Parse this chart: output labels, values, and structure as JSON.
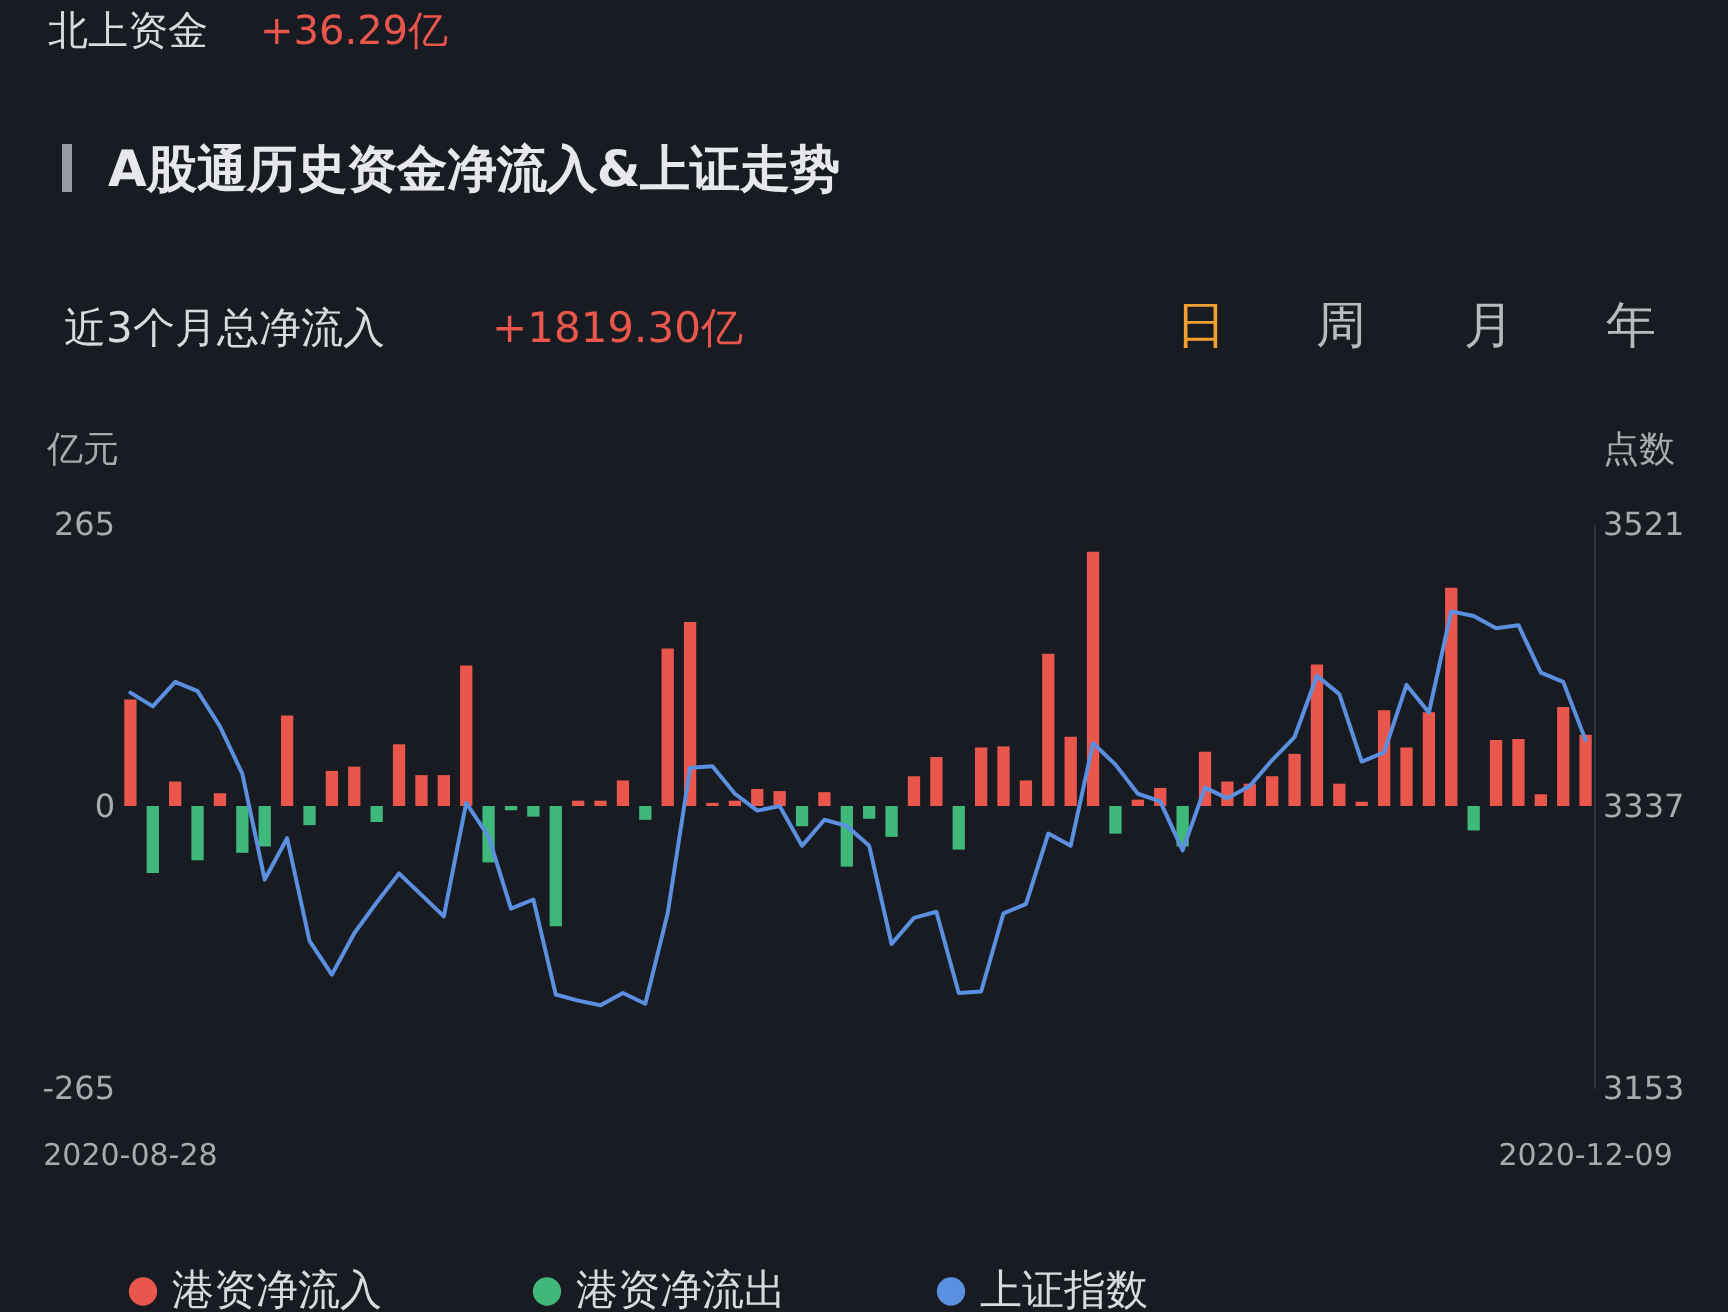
{
  "chart_data": {
    "type": "bar",
    "title": "A股通历史资金净流入&上证走势",
    "annotations": [
      "北上资金",
      "+36.29亿",
      "近3个月总净流入",
      "+1819.30亿",
      "日",
      "周",
      "月",
      "年"
    ],
    "ylabel": "亿元",
    "y2label": "点数",
    "categories": [
      "2020-08-28",
      null,
      null,
      null,
      null,
      null,
      null,
      null,
      null,
      null,
      null,
      null,
      null,
      null,
      null,
      null,
      null,
      null,
      null,
      null,
      null,
      null,
      null,
      null,
      null,
      null,
      null,
      null,
      null,
      null,
      null,
      null,
      null,
      null,
      null,
      null,
      null,
      null,
      null,
      null,
      null,
      null,
      null,
      null,
      null,
      null,
      null,
      null,
      null,
      null,
      null,
      null,
      null,
      null,
      null,
      null,
      null,
      null,
      null,
      null,
      null,
      null,
      null,
      null,
      null,
      "2020-12-09"
    ],
    "series": [
      {
        "name": "港资净流入",
        "type": "bar",
        "color": "#e8564c",
        "values": [
          100,
          null,
          23,
          null,
          12,
          null,
          null,
          85,
          null,
          33,
          37,
          null,
          58,
          29,
          29,
          132,
          null,
          null,
          null,
          null,
          5,
          5,
          24,
          null,
          148,
          173,
          3,
          5,
          16,
          14,
          null,
          13,
          null,
          null,
          null,
          28,
          46,
          null,
          55,
          56,
          24,
          143,
          65,
          239,
          null,
          6,
          17,
          null,
          51,
          23,
          21,
          28,
          49,
          133,
          21,
          4,
          90,
          55,
          88,
          205,
          null,
          62,
          63,
          11,
          93,
          67
        ]
      },
      {
        "name": "港资净流出",
        "type": "bar",
        "color": "#3fb87a",
        "values": [
          null,
          -63,
          null,
          -51,
          null,
          -44,
          -38,
          null,
          -18,
          null,
          null,
          -15,
          null,
          null,
          null,
          null,
          -53,
          -4,
          -10,
          -113,
          null,
          null,
          null,
          -13,
          null,
          null,
          null,
          null,
          null,
          null,
          -19,
          null,
          -57,
          -12,
          -29,
          null,
          null,
          -41,
          null,
          null,
          null,
          null,
          null,
          null,
          -26,
          null,
          null,
          -38,
          null,
          null,
          null,
          null,
          null,
          null,
          null,
          null,
          null,
          null,
          null,
          null,
          -23,
          null,
          null,
          null,
          null,
          null
        ]
      },
      {
        "name": "上证指数",
        "type": "line",
        "axis": "y2",
        "color": "#5b8fe0",
        "values": [
          3411,
          3402,
          3418,
          3412,
          3389,
          3358,
          3289,
          3316,
          3249,
          3227,
          3254,
          3274,
          3293,
          3279,
          3265,
          3339,
          3317,
          3270,
          3276,
          3214,
          3210,
          3207,
          3215,
          3208,
          3267,
          3362,
          3363,
          3345,
          3334,
          3337,
          3311,
          3328,
          3324,
          3311,
          3247,
          3264,
          3268,
          3215,
          3216,
          3267,
          3273,
          3319,
          3311,
          3378,
          3364,
          3345,
          3340,
          3308,
          3349,
          3342,
          3350,
          3367,
          3382,
          3422,
          3410,
          3366,
          3372,
          3416,
          3398,
          3464,
          3461,
          3453,
          3455,
          3424,
          3418,
          3380
        ]
      }
    ],
    "ylim": [
      -265,
      265
    ],
    "yticks": [
      -265,
      0,
      265
    ],
    "y2lim": [
      3153,
      3521
    ],
    "y2ticks": [
      3153,
      3337,
      3521
    ],
    "legend": "bottom"
  }
}
